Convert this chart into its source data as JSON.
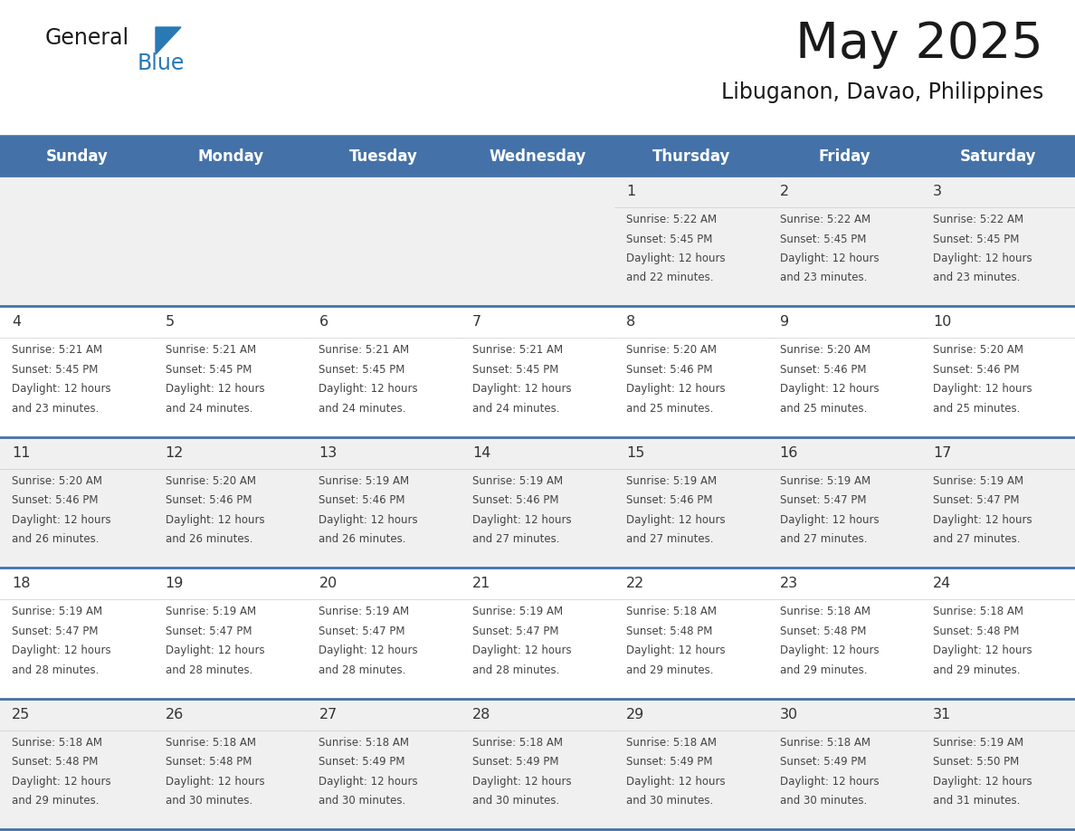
{
  "title": "May 2025",
  "subtitle": "Libuganon, Davao, Philippines",
  "days_of_week": [
    "Sunday",
    "Monday",
    "Tuesday",
    "Wednesday",
    "Thursday",
    "Friday",
    "Saturday"
  ],
  "header_bg": "#4472a8",
  "header_text": "#ffffff",
  "row_bg_odd": "#f0f0f0",
  "row_bg_even": "#ffffff",
  "separator_color": "#4472a8",
  "text_color": "#333333",
  "day_num_color": "#333333",
  "calendar_data": [
    [
      null,
      null,
      null,
      null,
      {
        "day": 1,
        "sunrise": "5:22 AM",
        "sunset": "5:45 PM",
        "daylight": "12 hours",
        "daylight2": "and 22 minutes."
      },
      {
        "day": 2,
        "sunrise": "5:22 AM",
        "sunset": "5:45 PM",
        "daylight": "12 hours",
        "daylight2": "and 23 minutes."
      },
      {
        "day": 3,
        "sunrise": "5:22 AM",
        "sunset": "5:45 PM",
        "daylight": "12 hours",
        "daylight2": "and 23 minutes."
      }
    ],
    [
      {
        "day": 4,
        "sunrise": "5:21 AM",
        "sunset": "5:45 PM",
        "daylight": "12 hours",
        "daylight2": "and 23 minutes."
      },
      {
        "day": 5,
        "sunrise": "5:21 AM",
        "sunset": "5:45 PM",
        "daylight": "12 hours",
        "daylight2": "and 24 minutes."
      },
      {
        "day": 6,
        "sunrise": "5:21 AM",
        "sunset": "5:45 PM",
        "daylight": "12 hours",
        "daylight2": "and 24 minutes."
      },
      {
        "day": 7,
        "sunrise": "5:21 AM",
        "sunset": "5:45 PM",
        "daylight": "12 hours",
        "daylight2": "and 24 minutes."
      },
      {
        "day": 8,
        "sunrise": "5:20 AM",
        "sunset": "5:46 PM",
        "daylight": "12 hours",
        "daylight2": "and 25 minutes."
      },
      {
        "day": 9,
        "sunrise": "5:20 AM",
        "sunset": "5:46 PM",
        "daylight": "12 hours",
        "daylight2": "and 25 minutes."
      },
      {
        "day": 10,
        "sunrise": "5:20 AM",
        "sunset": "5:46 PM",
        "daylight": "12 hours",
        "daylight2": "and 25 minutes."
      }
    ],
    [
      {
        "day": 11,
        "sunrise": "5:20 AM",
        "sunset": "5:46 PM",
        "daylight": "12 hours",
        "daylight2": "and 26 minutes."
      },
      {
        "day": 12,
        "sunrise": "5:20 AM",
        "sunset": "5:46 PM",
        "daylight": "12 hours",
        "daylight2": "and 26 minutes."
      },
      {
        "day": 13,
        "sunrise": "5:19 AM",
        "sunset": "5:46 PM",
        "daylight": "12 hours",
        "daylight2": "and 26 minutes."
      },
      {
        "day": 14,
        "sunrise": "5:19 AM",
        "sunset": "5:46 PM",
        "daylight": "12 hours",
        "daylight2": "and 27 minutes."
      },
      {
        "day": 15,
        "sunrise": "5:19 AM",
        "sunset": "5:46 PM",
        "daylight": "12 hours",
        "daylight2": "and 27 minutes."
      },
      {
        "day": 16,
        "sunrise": "5:19 AM",
        "sunset": "5:47 PM",
        "daylight": "12 hours",
        "daylight2": "and 27 minutes."
      },
      {
        "day": 17,
        "sunrise": "5:19 AM",
        "sunset": "5:47 PM",
        "daylight": "12 hours",
        "daylight2": "and 27 minutes."
      }
    ],
    [
      {
        "day": 18,
        "sunrise": "5:19 AM",
        "sunset": "5:47 PM",
        "daylight": "12 hours",
        "daylight2": "and 28 minutes."
      },
      {
        "day": 19,
        "sunrise": "5:19 AM",
        "sunset": "5:47 PM",
        "daylight": "12 hours",
        "daylight2": "and 28 minutes."
      },
      {
        "day": 20,
        "sunrise": "5:19 AM",
        "sunset": "5:47 PM",
        "daylight": "12 hours",
        "daylight2": "and 28 minutes."
      },
      {
        "day": 21,
        "sunrise": "5:19 AM",
        "sunset": "5:47 PM",
        "daylight": "12 hours",
        "daylight2": "and 28 minutes."
      },
      {
        "day": 22,
        "sunrise": "5:18 AM",
        "sunset": "5:48 PM",
        "daylight": "12 hours",
        "daylight2": "and 29 minutes."
      },
      {
        "day": 23,
        "sunrise": "5:18 AM",
        "sunset": "5:48 PM",
        "daylight": "12 hours",
        "daylight2": "and 29 minutes."
      },
      {
        "day": 24,
        "sunrise": "5:18 AM",
        "sunset": "5:48 PM",
        "daylight": "12 hours",
        "daylight2": "and 29 minutes."
      }
    ],
    [
      {
        "day": 25,
        "sunrise": "5:18 AM",
        "sunset": "5:48 PM",
        "daylight": "12 hours",
        "daylight2": "and 29 minutes."
      },
      {
        "day": 26,
        "sunrise": "5:18 AM",
        "sunset": "5:48 PM",
        "daylight": "12 hours",
        "daylight2": "and 30 minutes."
      },
      {
        "day": 27,
        "sunrise": "5:18 AM",
        "sunset": "5:49 PM",
        "daylight": "12 hours",
        "daylight2": "and 30 minutes."
      },
      {
        "day": 28,
        "sunrise": "5:18 AM",
        "sunset": "5:49 PM",
        "daylight": "12 hours",
        "daylight2": "and 30 minutes."
      },
      {
        "day": 29,
        "sunrise": "5:18 AM",
        "sunset": "5:49 PM",
        "daylight": "12 hours",
        "daylight2": "and 30 minutes."
      },
      {
        "day": 30,
        "sunrise": "5:18 AM",
        "sunset": "5:49 PM",
        "daylight": "12 hours",
        "daylight2": "and 30 minutes."
      },
      {
        "day": 31,
        "sunrise": "5:19 AM",
        "sunset": "5:50 PM",
        "daylight": "12 hours",
        "daylight2": "and 31 minutes."
      }
    ]
  ]
}
